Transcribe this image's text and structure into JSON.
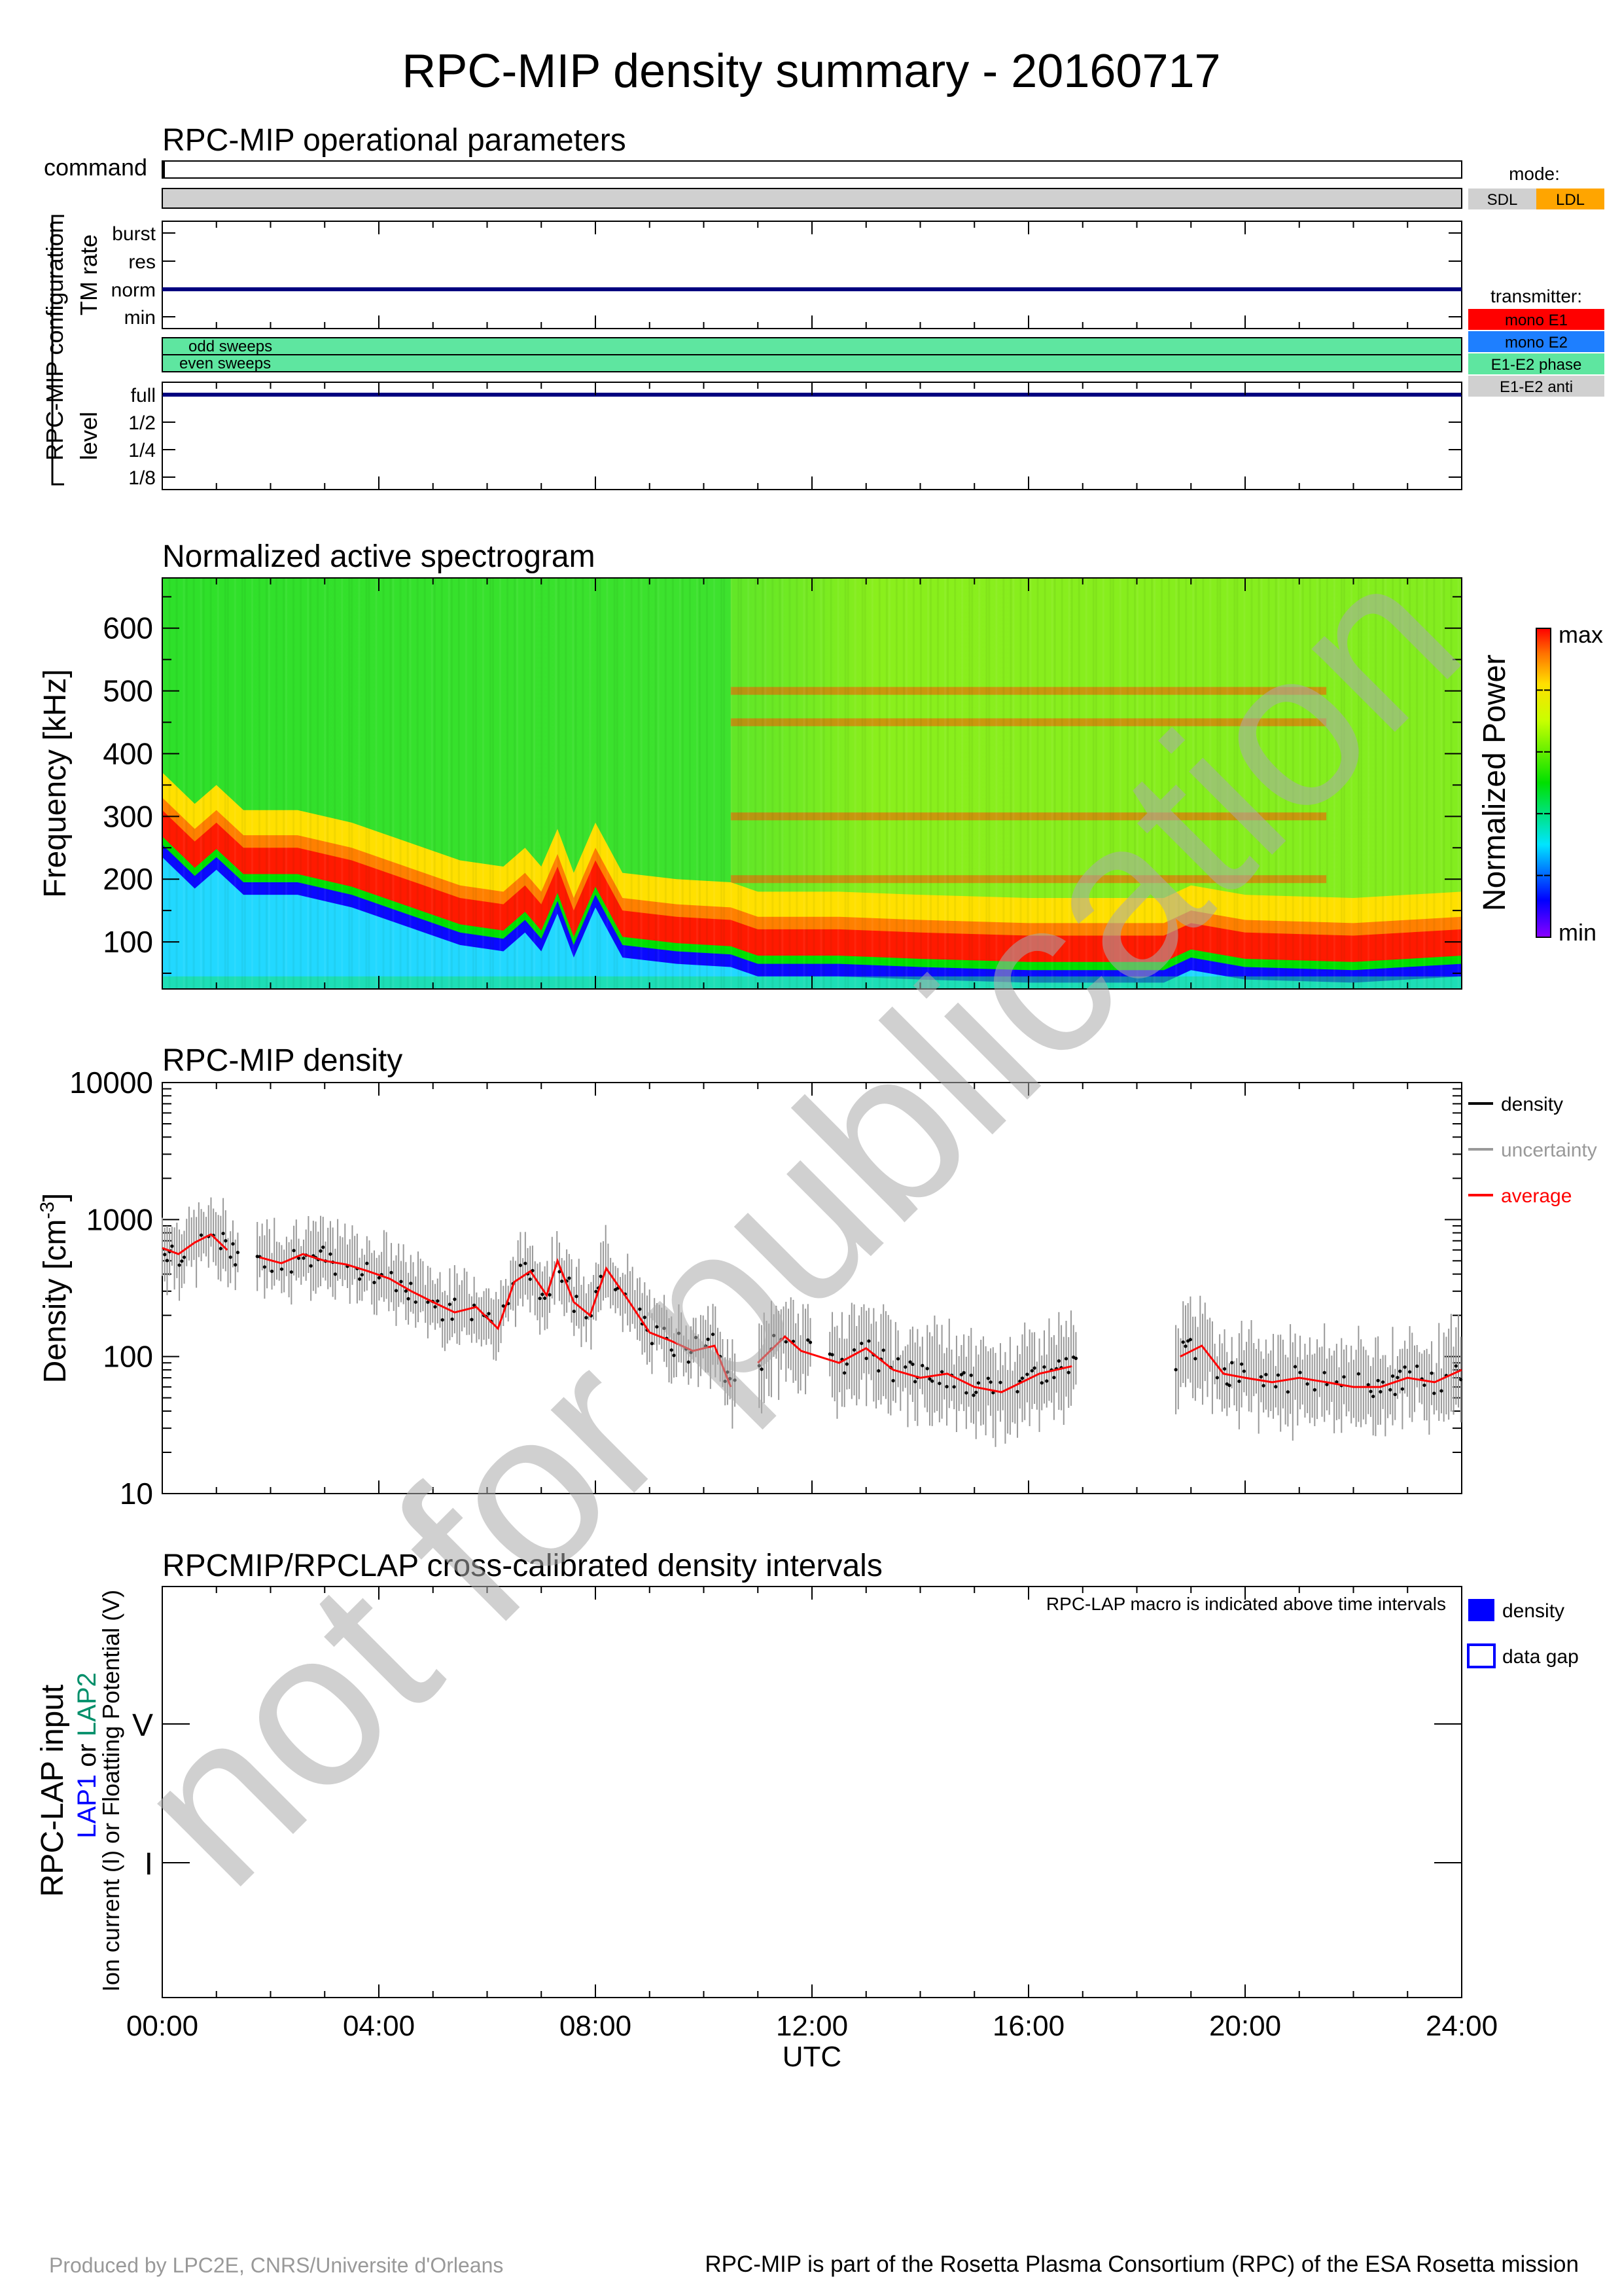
{
  "title": "RPC-MIP density summary - 20160717",
  "footer": {
    "left": "Produced by LPC2E, CNRS/Universite d'Orleans",
    "right": "RPC-MIP is part of the Rosetta Plasma Consortium (RPC) of the ESA Rosetta mission"
  },
  "x_axis": {
    "ticks": [
      "00:00",
      "04:00",
      "08:00",
      "12:00",
      "16:00",
      "20:00",
      "24:00"
    ],
    "label": "UTC"
  },
  "watermark": "not for publication",
  "operational": {
    "title": "RPC-MIP operational parameters",
    "command_label": "command",
    "config_label": "RPC-MIP configuration",
    "tm_rate_label": "TM rate",
    "tm_rate_levels": [
      "burst",
      "res",
      "norm",
      "min"
    ],
    "tm_rate_value": "norm",
    "sweeps": [
      "odd sweeps",
      "even sweeps"
    ],
    "level_label": "level",
    "level_levels": [
      "full",
      "1/2",
      "1/4",
      "1/8"
    ],
    "level_value": "full",
    "mode_legend": {
      "title": "mode:",
      "items": [
        {
          "label": "SDL",
          "color": "#d0d0d0"
        },
        {
          "label": "LDL",
          "color": "#ffa500"
        }
      ]
    },
    "mode_bar_color": "#d0d0d0",
    "transmitter_legend": {
      "title": "transmitter:",
      "items": [
        {
          "label": "mono E1",
          "color": "#ff0000"
        },
        {
          "label": "mono E2",
          "color": "#1e7fff"
        },
        {
          "label": "E1-E2 phase",
          "color": "#5ee6a0"
        },
        {
          "label": "E1-E2 anti",
          "color": "#d0d0d0"
        }
      ]
    },
    "sweep_bar_color": "#5ee6a0"
  },
  "spectrogram": {
    "title": "Normalized active spectrogram",
    "ylabel": "Frequency [kHz]",
    "yticks": [
      "100",
      "200",
      "300",
      "400",
      "500",
      "600"
    ],
    "colorbar_label": "Normalized Power",
    "colorbar_max": "max",
    "colorbar_min": "min"
  },
  "density_panel": {
    "title": "RPC-MIP density",
    "ylabel": "Density [cm",
    "ylabel_sup": "-3",
    "ylabel_end": "]",
    "yticks": [
      "10",
      "100",
      "1000",
      "10000"
    ],
    "legend": [
      {
        "label": "density",
        "color": "#000000"
      },
      {
        "label": "uncertainty",
        "color": "#999999"
      },
      {
        "label": "average",
        "color": "#ff0000"
      }
    ]
  },
  "crosscal": {
    "title": "RPCMIP/RPCLAP cross-calibrated density intervals",
    "note": "RPC-LAP macro is indicated above time intervals",
    "ylabel_main": "RPC-LAP input",
    "ylabel_lap1": "LAP1",
    "ylabel_or": " or ",
    "ylabel_lap2": "LAP2",
    "ylabel_line3": "Ion current (I) or Floatting Potential (V)",
    "ticks": [
      "V",
      "I"
    ],
    "legend": [
      {
        "label": "density",
        "kind": "filled",
        "color": "#0000ff"
      },
      {
        "label": "data gap",
        "kind": "outline",
        "color": "#0000ff"
      }
    ]
  },
  "chart_data": [
    {
      "type": "heatmap",
      "title": "Normalized active spectrogram",
      "xlabel": "UTC",
      "ylabel": "Frequency [kHz]",
      "xlim": [
        0,
        24
      ],
      "ylim": [
        25,
        680
      ],
      "plasma_line_khz": [
        {
          "t": 0.0,
          "f": 260
        },
        {
          "t": 0.6,
          "f": 210
        },
        {
          "t": 1.0,
          "f": 240
        },
        {
          "t": 1.5,
          "f": 200
        },
        {
          "t": 2.5,
          "f": 200
        },
        {
          "t": 3.5,
          "f": 180
        },
        {
          "t": 4.5,
          "f": 150
        },
        {
          "t": 5.5,
          "f": 120
        },
        {
          "t": 6.3,
          "f": 110
        },
        {
          "t": 6.7,
          "f": 140
        },
        {
          "t": 7.0,
          "f": 110
        },
        {
          "t": 7.3,
          "f": 170
        },
        {
          "t": 7.6,
          "f": 100
        },
        {
          "t": 8.0,
          "f": 180
        },
        {
          "t": 8.5,
          "f": 100
        },
        {
          "t": 9.5,
          "f": 90
        },
        {
          "t": 10.5,
          "f": 85
        },
        {
          "t": 11.0,
          "f": 70
        },
        {
          "t": 12.5,
          "f": 70
        },
        {
          "t": 14.0,
          "f": 65
        },
        {
          "t": 16.0,
          "f": 60
        },
        {
          "t": 18.5,
          "f": 60
        },
        {
          "t": 19.0,
          "f": 80
        },
        {
          "t": 20.0,
          "f": 65
        },
        {
          "t": 22.0,
          "f": 60
        },
        {
          "t": 24.0,
          "f": 70
        }
      ],
      "interference_lines_khz": [
        150,
        200,
        300,
        450,
        500
      ],
      "colorbar": {
        "label": "Normalized Power",
        "min": "min",
        "max": "max"
      }
    },
    {
      "type": "scatter",
      "title": "RPC-MIP density",
      "xlabel": "UTC",
      "ylabel": "Density [cm^-3]",
      "xlim": [
        0,
        24
      ],
      "ylim": [
        10,
        10000
      ],
      "log_y": true,
      "series": [
        {
          "name": "average",
          "x": [
            0.0,
            0.3,
            0.6,
            0.9,
            1.2,
            1.8,
            2.2,
            2.6,
            3.0,
            3.4,
            3.8,
            4.2,
            4.6,
            5.0,
            5.4,
            5.8,
            6.2,
            6.5,
            6.8,
            7.1,
            7.3,
            7.6,
            7.9,
            8.2,
            8.6,
            9.0,
            9.4,
            9.8,
            10.2,
            10.5,
            11.0,
            11.5,
            11.8,
            12.5,
            13.0,
            13.5,
            14.0,
            14.5,
            15.0,
            15.5,
            16.2,
            16.8,
            18.8,
            19.2,
            19.6,
            20.0,
            20.5,
            21.0,
            21.5,
            22.0,
            22.5,
            23.0,
            23.5,
            24.0
          ],
          "y": [
            620,
            560,
            680,
            780,
            600,
            530,
            480,
            560,
            500,
            470,
            420,
            370,
            300,
            250,
            210,
            230,
            160,
            350,
            420,
            280,
            500,
            250,
            200,
            440,
            260,
            150,
            130,
            110,
            120,
            60,
            90,
            140,
            110,
            90,
            115,
            80,
            70,
            75,
            60,
            55,
            75,
            85,
            100,
            120,
            75,
            70,
            65,
            70,
            65,
            60,
            60,
            70,
            65,
            80
          ]
        }
      ],
      "gaps_hours": [
        [
          1.4,
          1.75
        ],
        [
          10.6,
          11.0
        ],
        [
          16.9,
          18.7
        ]
      ]
    },
    {
      "type": "bar",
      "title": "RPCMIP/RPCLAP cross-calibrated density intervals",
      "xlabel": "UTC",
      "xlim": [
        0,
        24
      ],
      "categories": [
        "V",
        "I"
      ],
      "intervals": []
    }
  ]
}
